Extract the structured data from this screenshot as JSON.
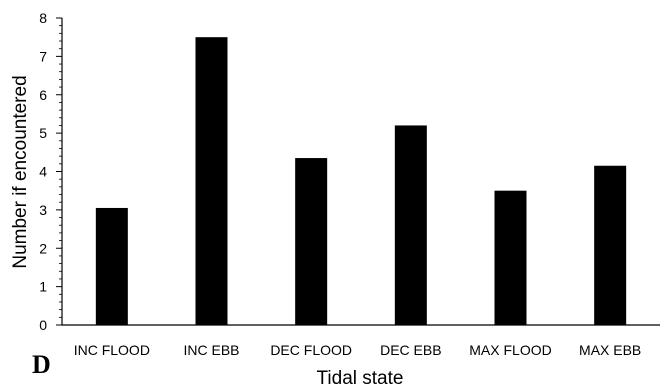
{
  "panel_label": "D",
  "chart_data": {
    "type": "bar",
    "categories": [
      "INC FLOOD",
      "INC EBB",
      "DEC FLOOD",
      "DEC EBB",
      "MAX FLOOD",
      "MAX EBB"
    ],
    "values": [
      3.05,
      7.5,
      4.35,
      5.2,
      3.5,
      4.15
    ],
    "xlabel": "Tidal state",
    "ylabel": "Number if encountered",
    "ylim": [
      0,
      8
    ],
    "yticks": [
      0,
      1,
      2,
      3,
      4,
      5,
      6,
      7,
      8
    ],
    "bar_color": "#000000",
    "grid": false,
    "legend": "none"
  }
}
